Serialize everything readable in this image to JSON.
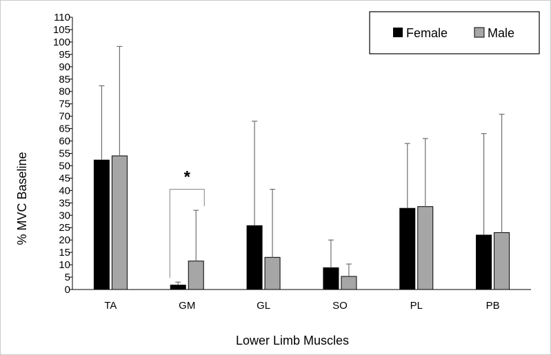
{
  "chart_data": {
    "type": "bar",
    "title": "",
    "xlabel": "Lower Limb Muscles",
    "ylabel": "% MVC  Baseline",
    "ylim": [
      0,
      110
    ],
    "ytick_step": 5,
    "categories": [
      "TA",
      "GM",
      "GL",
      "SO",
      "PL",
      "PB"
    ],
    "series": [
      {
        "name": "Female",
        "color": "#000000",
        "values": [
          52.3,
          1.8,
          25.8,
          8.8,
          32.8,
          22.0
        ],
        "error_plus": [
          30.0,
          1.2,
          42.2,
          11.2,
          26.2,
          41.0
        ]
      },
      {
        "name": "Male",
        "color": "#a6a6a6",
        "values": [
          54.0,
          11.5,
          13.0,
          5.3,
          33.5,
          23.0
        ],
        "error_plus": [
          44.2,
          20.5,
          27.5,
          5.0,
          27.5,
          47.8
        ]
      }
    ],
    "annotations": [
      {
        "text": "*",
        "category": "GM",
        "type": "significance-bracket",
        "bracket_top": 40.5
      }
    ],
    "legend": {
      "position": "top-right"
    },
    "grid": false
  }
}
